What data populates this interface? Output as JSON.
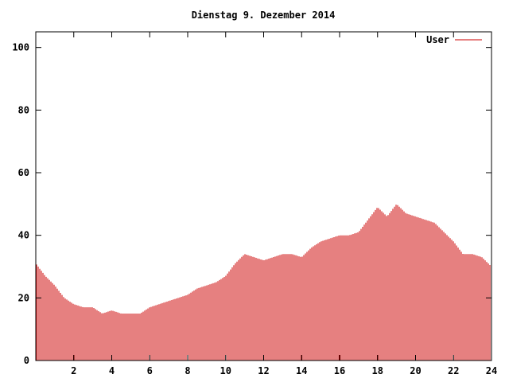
{
  "chart_data": {
    "type": "bar",
    "title": "Dienstag 9. Dezember 2014",
    "xlabel": "",
    "ylabel": "",
    "xlim": [
      0,
      24
    ],
    "ylim": [
      0,
      105
    ],
    "x_ticks": [
      "2",
      "4",
      "6",
      "8",
      "10",
      "12",
      "14",
      "16",
      "18",
      "20",
      "22",
      "24"
    ],
    "y_ticks": [
      "0",
      "20",
      "40",
      "60",
      "80",
      "100"
    ],
    "legend_position": "top-right",
    "grid": false,
    "series": [
      {
        "name": "User",
        "color": "#cc0000",
        "x": [
          0.0,
          0.5,
          1.0,
          1.5,
          2.0,
          2.5,
          3.0,
          3.5,
          4.0,
          4.5,
          5.0,
          5.5,
          6.0,
          6.5,
          7.0,
          7.5,
          8.0,
          8.5,
          9.0,
          9.5,
          10.0,
          10.5,
          11.0,
          11.5,
          12.0,
          12.5,
          13.0,
          13.5,
          14.0,
          14.5,
          15.0,
          15.5,
          16.0,
          16.5,
          17.0,
          17.5,
          18.0,
          18.5,
          19.0,
          19.5,
          20.0,
          20.5,
          21.0,
          21.5,
          22.0,
          22.5,
          23.0,
          23.5,
          24.0
        ],
        "values": [
          31,
          27,
          24,
          20,
          18,
          17,
          17,
          15,
          16,
          15,
          15,
          15,
          17,
          18,
          19,
          20,
          21,
          23,
          24,
          25,
          27,
          31,
          34,
          33,
          32,
          33,
          34,
          34,
          33,
          36,
          38,
          39,
          40,
          40,
          41,
          45,
          49,
          46,
          50,
          47,
          46,
          45,
          44,
          41,
          38,
          34,
          34,
          33,
          30
        ]
      }
    ]
  }
}
